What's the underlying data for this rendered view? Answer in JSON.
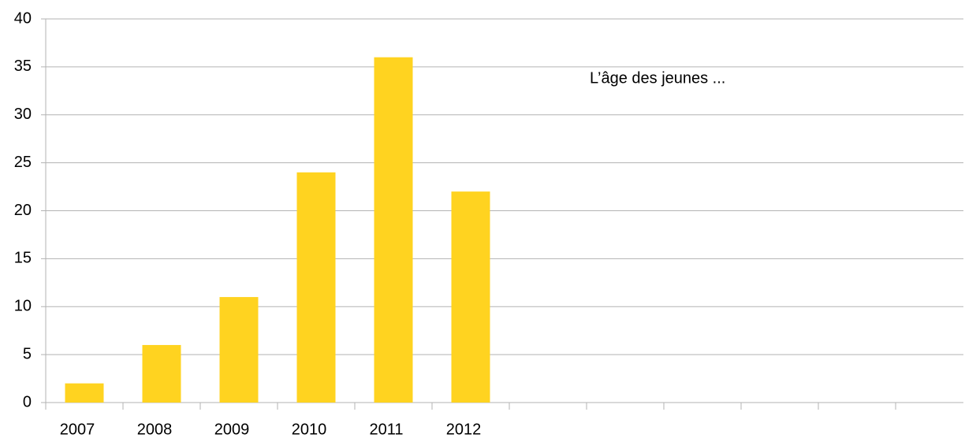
{
  "chart_data": {
    "type": "bar",
    "annotation": "L’âge des jeunes ...",
    "categories": [
      "2007",
      "2008",
      "2009",
      "2010",
      "2011",
      "2012",
      null,
      null,
      null,
      null,
      null,
      null
    ],
    "values": [
      2,
      6,
      11,
      24,
      36,
      22,
      null,
      null,
      null,
      null,
      null,
      null
    ],
    "color": "#ffd320",
    "ylim": [
      0,
      40
    ],
    "yticks": [
      0,
      5,
      10,
      15,
      20,
      25,
      30,
      35,
      40
    ],
    "grid": true
  }
}
